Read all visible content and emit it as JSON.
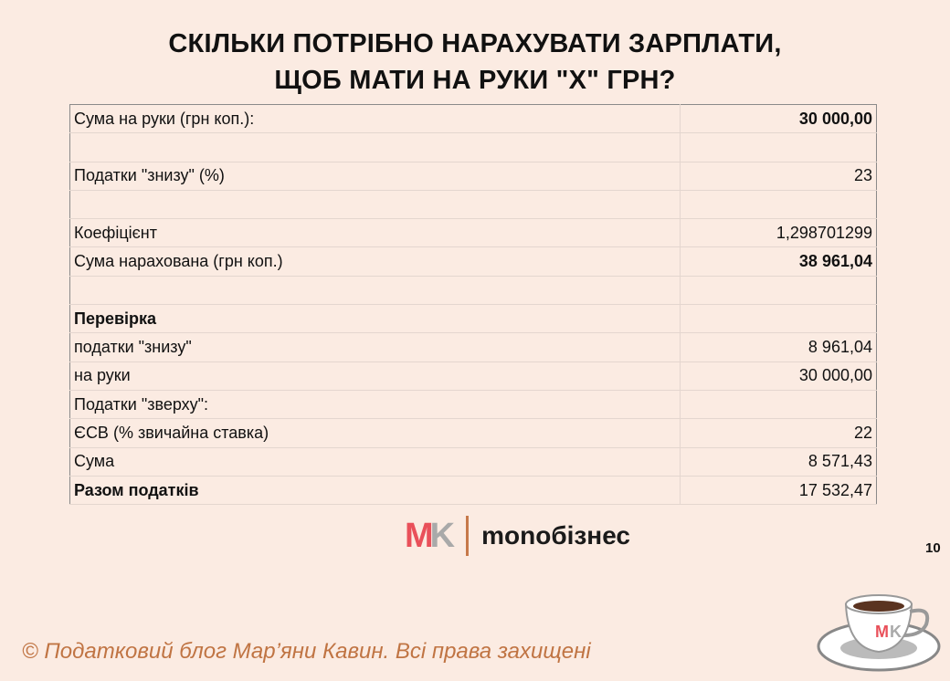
{
  "title": {
    "line1": "СКІЛЬКИ ПОТРІБНО НАРАХУВАТИ ЗАРПЛАТИ,",
    "line2": "ЩОБ МАТИ НА РУКИ \"Х\" ГРН?"
  },
  "table": {
    "rows": [
      {
        "label": "Сума на руки (грн коп.):",
        "value": "30 000,00",
        "value_bold": true
      },
      {
        "label": "",
        "value": ""
      },
      {
        "label": "Податки \"знизу\" (%)",
        "value": "23"
      },
      {
        "label": "",
        "value": ""
      },
      {
        "label": "Коефіцієнт",
        "value": "1,298701299"
      },
      {
        "label": "Сума нарахована (грн коп.)",
        "value": "38 961,04",
        "value_bold": true
      },
      {
        "label": "",
        "value": ""
      },
      {
        "label": "Перевірка",
        "value": "",
        "label_bold": true
      },
      {
        "label": "податки \"знизу\"",
        "value": "8 961,04"
      },
      {
        "label": "на руки",
        "value": "30 000,00"
      },
      {
        "label": "Податки \"зверху\":",
        "value": ""
      },
      {
        "label": "ЄСВ (% звичайна ставка)",
        "value": "22"
      },
      {
        "label": "Сума",
        "value": "8 571,43"
      },
      {
        "label": "Разом податків",
        "value": "17 532,47",
        "label_bold": true
      }
    ]
  },
  "logo": {
    "mark_m": "M",
    "mark_k": "K",
    "brand": "monoбізнес"
  },
  "page_number": "10",
  "footer": {
    "copyright": "© Податковий блог Мар’яни Кавин. Всі права захищені"
  },
  "colors": {
    "background": "#fbebe2",
    "accent_red": "#e9505a",
    "footer_text": "#c07443"
  }
}
